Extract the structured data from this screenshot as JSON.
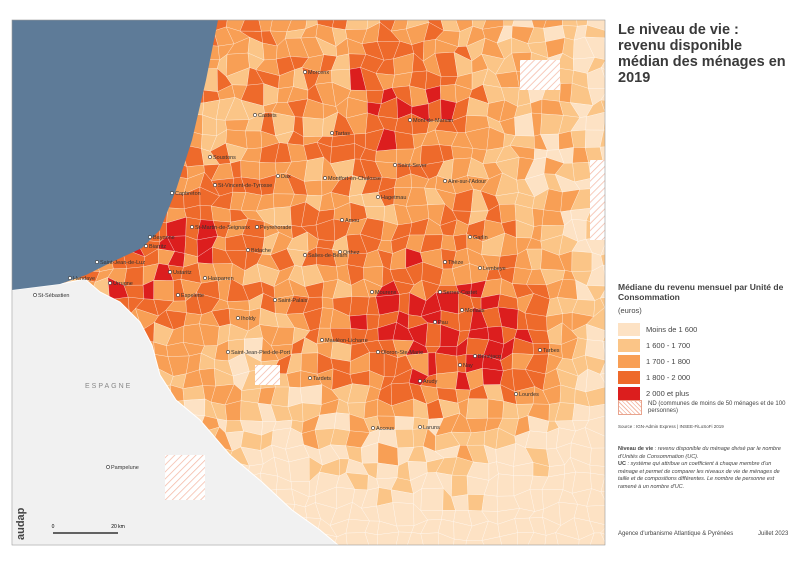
{
  "title": "Le niveau de vie : revenu disponible médian des ménages en 2019",
  "country_label": "ESPAGNE",
  "cities": [
    "Morcenx",
    "Castets",
    "Tartas",
    "Mont-de-Marsan",
    "Soustons",
    "Dax",
    "Saint-Sever",
    "Capbreton",
    "St-Vincent-de-Tyrosse",
    "Montfort-en-Chalosse",
    "Aire-sur-l'Adour",
    "Hagetmau",
    "St-Martin-de-Seignanx",
    "Peyrehorade",
    "Amou",
    "Bayonne",
    "Biarritz",
    "Saint-Jean-de-Luz",
    "Hendaye",
    "Urrugne",
    "Ustaritz",
    "Hasparren",
    "Bidache",
    "Salies-de-Béarn",
    "Orthez",
    "Garlin",
    "Lembeye",
    "Thèze",
    "Espelette",
    "Saint-Palais",
    "Mourenx",
    "Serres-Castet",
    "Morlaàs",
    "Pau",
    "Iholdy",
    "Mauléon-Licharre",
    "Saint-Jean-Pied-de-Port",
    "Oloron-Ste-Marie",
    "Bénéjacq",
    "Nay",
    "Tarbes",
    "Tardets",
    "Arudy",
    "Lourdes",
    "Accous",
    "Laruns",
    "St-Sébastien",
    "Pampelune"
  ],
  "legend": {
    "title": "Médiane du revenu mensuel par Unité de Consommation",
    "unit": "(euros)",
    "items": [
      {
        "label": "Moins de 1 600",
        "color": "#fde2c4"
      },
      {
        "label": "1 600 - 1 700",
        "color": "#fbc587"
      },
      {
        "label": "1 700 - 1 800",
        "color": "#f89f55"
      },
      {
        "label": "1 800 - 2 000",
        "color": "#ee6a2b"
      },
      {
        "label": "2 000 et plus",
        "color": "#dc1e1e"
      }
    ],
    "nd_label": "ND (communes de moins de 50 ménages et de 100 personnes)"
  },
  "source": "Source : IGN-Admin Express | INSEE-FiLoSoFi 2019",
  "notes": [
    {
      "term": "Niveau de vie",
      "text": " : revenu disponible du ménage divisé par le nombre d'Unités de Consommation (UC)."
    },
    {
      "term": "UC",
      "text": " : système qui attribue un coefficient à chaque membre d'un ménage et permet de comparer les niveaux de vie de ménages de taille et de compositions différentes. Le nombre de personne est ramené à un nombre d'UC."
    }
  ],
  "scale": {
    "start": "0",
    "end": "20 km"
  },
  "logo": "audap",
  "footer": {
    "agency": "Agence d'urbanisme Atlantique & Pyrénées",
    "date": "Juillet 2023"
  }
}
